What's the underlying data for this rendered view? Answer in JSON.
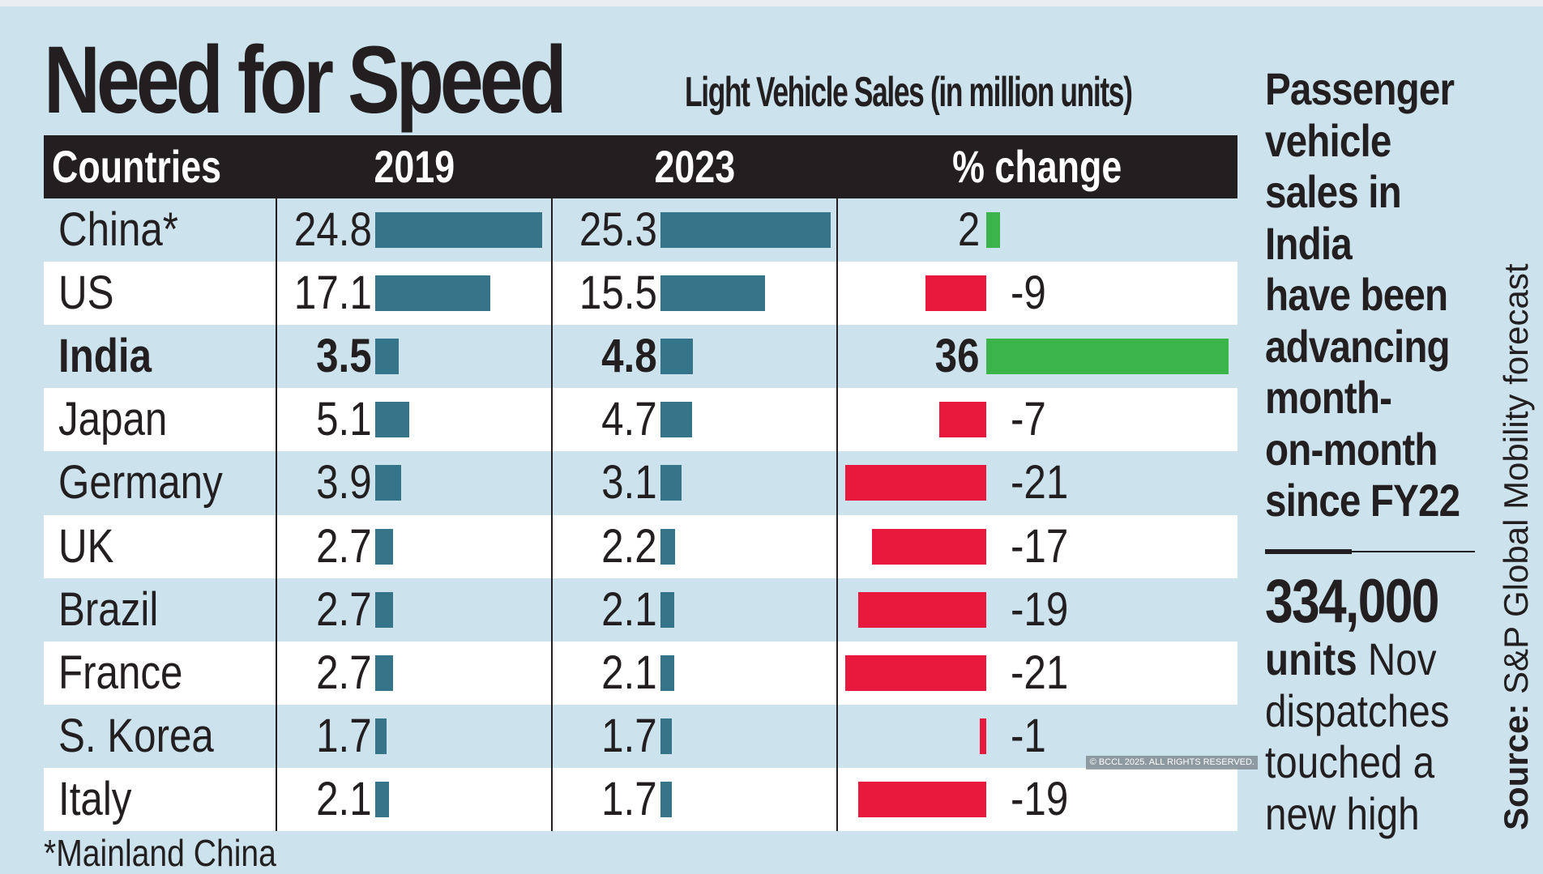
{
  "title": "Need for Speed",
  "subtitle": "Light Vehicle Sales (in million units)",
  "colors": {
    "bar2019": "#367489",
    "bar2023": "#367489",
    "positive": "#3bb54a",
    "negative": "#e8193c",
    "header": "#231f20",
    "background": "#cce3ee"
  },
  "chart_data": {
    "type": "table",
    "title": "Need for Speed",
    "subtitle": "Light Vehicle Sales (in million units)",
    "columns": [
      "Countries",
      "2019",
      "2023",
      "% change"
    ],
    "rows": [
      {
        "country": "China*",
        "y2019": "24.8",
        "y2023": "25.3",
        "change": "2",
        "highlight": false
      },
      {
        "country": "US",
        "y2019": "17.1",
        "y2023": "15.5",
        "change": "-9",
        "highlight": false
      },
      {
        "country": "India",
        "y2019": "3.5",
        "y2023": "4.8",
        "change": "36",
        "highlight": true
      },
      {
        "country": "Japan",
        "y2019": "5.1",
        "y2023": "4.7",
        "change": "-7",
        "highlight": false
      },
      {
        "country": "Germany",
        "y2019": "3.9",
        "y2023": "3.1",
        "change": "-21",
        "highlight": false
      },
      {
        "country": "UK",
        "y2019": "2.7",
        "y2023": "2.2",
        "change": "-17",
        "highlight": false
      },
      {
        "country": "Brazil",
        "y2019": "2.7",
        "y2023": "2.1",
        "change": "-19",
        "highlight": false
      },
      {
        "country": "France",
        "y2019": "2.7",
        "y2023": "2.1",
        "change": "-21",
        "highlight": false
      },
      {
        "country": "S. Korea",
        "y2019": "1.7",
        "y2023": "1.7",
        "change": "-1",
        "highlight": false
      },
      {
        "country": "Italy",
        "y2019": "2.1",
        "y2023": "1.7",
        "change": "-19",
        "highlight": false
      }
    ],
    "footnote": "*Mainland China"
  },
  "sidebar": {
    "headline_lines": [
      "Passenger",
      "vehicle",
      "sales in",
      "India",
      "have been",
      "advancing",
      "month-",
      "on-month",
      "since FY22"
    ],
    "big_number": "334,000",
    "caption_bold": "units",
    "caption_lines": [
      " Nov",
      "dispatches",
      "touched a",
      "new high"
    ]
  },
  "source_label": "Source:",
  "source_text": " S&P Global Mobility forecast",
  "watermark": "© BCCL 2025. ALL RIGHTS RESERVED."
}
